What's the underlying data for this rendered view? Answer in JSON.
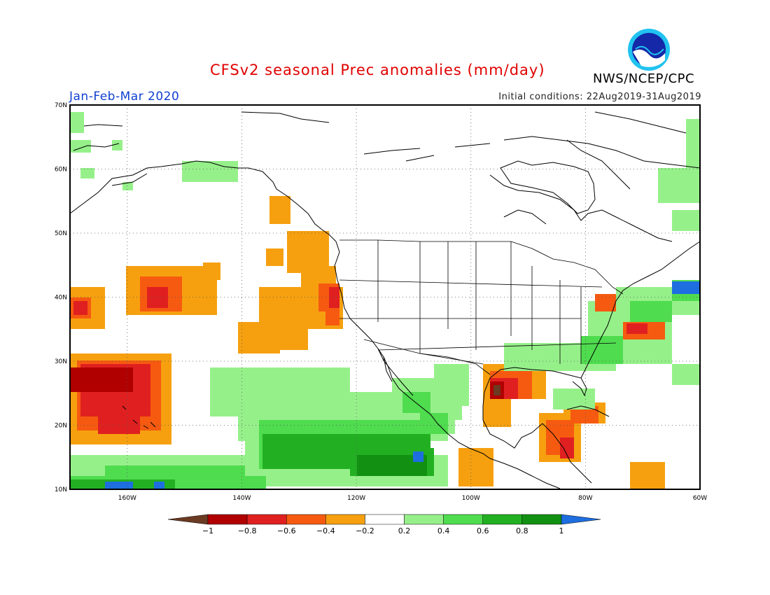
{
  "header": {
    "title": "CFSv2 seasonal Prec anomalies (mm/day)",
    "agency": "NWS/NCEP/CPC",
    "logo_text": "NOAA",
    "season": "Jan-Feb-Mar 2020",
    "initial_conditions": "Initial conditions: 22Aug2019-31Aug2019"
  },
  "map": {
    "lon_range": [
      -170,
      -60
    ],
    "lat_range": [
      10,
      70
    ],
    "lat_labels": [
      "70N",
      "60N",
      "50N",
      "40N",
      "30N",
      "20N",
      "10N"
    ],
    "lon_labels": [
      "160W",
      "140W",
      "120W",
      "100W",
      "80W",
      "60W"
    ]
  },
  "colorbar": {
    "ticks": [
      "-1",
      "-0.8",
      "-0.6",
      "-0.4",
      "-0.2",
      "0.2",
      "0.4",
      "0.6",
      "0.8",
      "1"
    ],
    "colors": [
      "#6b3a22",
      "#b10000",
      "#e02020",
      "#f65a10",
      "#f6a010",
      "#ffffff",
      "#96f08a",
      "#4fdc4f",
      "#22b022",
      "#129012",
      "#1e6ee0"
    ]
  }
}
